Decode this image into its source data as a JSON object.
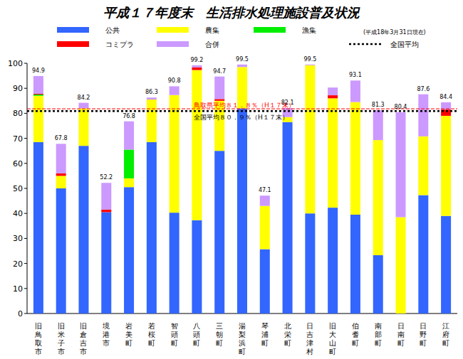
{
  "chart_data": {
    "type": "bar",
    "stacked": true,
    "grid": false,
    "title": "平成１７年度末　生活排水処理施設普及状況",
    "subtitle": "(平成18年3月31日現在)",
    "categories": [
      "旧鳥取市",
      "旧米子市",
      "旧倉吉市",
      "境港市",
      "岩美町",
      "若桜町",
      "智頭町",
      "八頭町",
      "三朝町",
      "湯梨浜町",
      "琴浦町",
      "北栄町",
      "日吉津村",
      "旧大山町",
      "伯耆町",
      "南部町",
      "日南町",
      "日野町",
      "江府町"
    ],
    "series": [
      {
        "name": "公共",
        "color": "#3366ff",
        "values": [
          68.5,
          50,
          67,
          40.5,
          50.5,
          68.5,
          40.3,
          37.3,
          65,
          82,
          25.7,
          76.5,
          40,
          42.3,
          39.5,
          23.3,
          0,
          47.3,
          39
        ]
      },
      {
        "name": "農集",
        "color": "#ffff00",
        "values": [
          18.5,
          5,
          15,
          0,
          3.5,
          17,
          47,
          60,
          20,
          16.5,
          17.3,
          2,
          59.2,
          43.7,
          45,
          46,
          38.5,
          23.5,
          40
        ]
      },
      {
        "name": "漁集",
        "color": "#00ee00",
        "values": [
          0.5,
          0,
          0,
          0,
          11.5,
          0,
          0,
          0,
          0,
          0,
          0,
          0,
          0,
          0,
          0,
          0,
          0,
          0,
          0
        ]
      },
      {
        "name": "コミプラ",
        "color": "#ff0000",
        "values": [
          0.3,
          1,
          0,
          1,
          0,
          0,
          0,
          1,
          0.7,
          0,
          0,
          0,
          0,
          1.2,
          0,
          0,
          0,
          0,
          2.5
        ]
      },
      {
        "name": "合併",
        "color": "#cc99ff",
        "values": [
          7.1,
          11.8,
          2.2,
          10.7,
          11.3,
          0.8,
          3.5,
          0.9,
          9,
          1,
          4.1,
          3.6,
          0.3,
          3.1,
          8.6,
          12,
          41.9,
          16.8,
          2.9
        ]
      }
    ],
    "total_labels": [
      "94.9",
      "67.8",
      "84.2",
      "52.2",
      "76.8",
      "86.3",
      "90.8",
      "99.2",
      "94.7",
      "99.5",
      "47.1",
      "82.1",
      "99.5",
      null,
      "93.1",
      "81.3",
      "80.4",
      "87.6",
      "84.4"
    ],
    "reference_lines": [
      {
        "value": 81.8,
        "label": "鳥取県平均８１．８％（H１７末）",
        "color": "#ff0000",
        "line_style": "dashed"
      },
      {
        "value": 80.9,
        "name": "全国平均",
        "label": "全国平均８０．９％（H１７末）",
        "color": "#000000",
        "line_style": "dotted"
      }
    ],
    "ylim": [
      0,
      100
    ],
    "yticks": [
      0,
      10,
      20,
      30,
      40,
      50,
      60,
      70,
      80,
      90,
      100
    ]
  }
}
